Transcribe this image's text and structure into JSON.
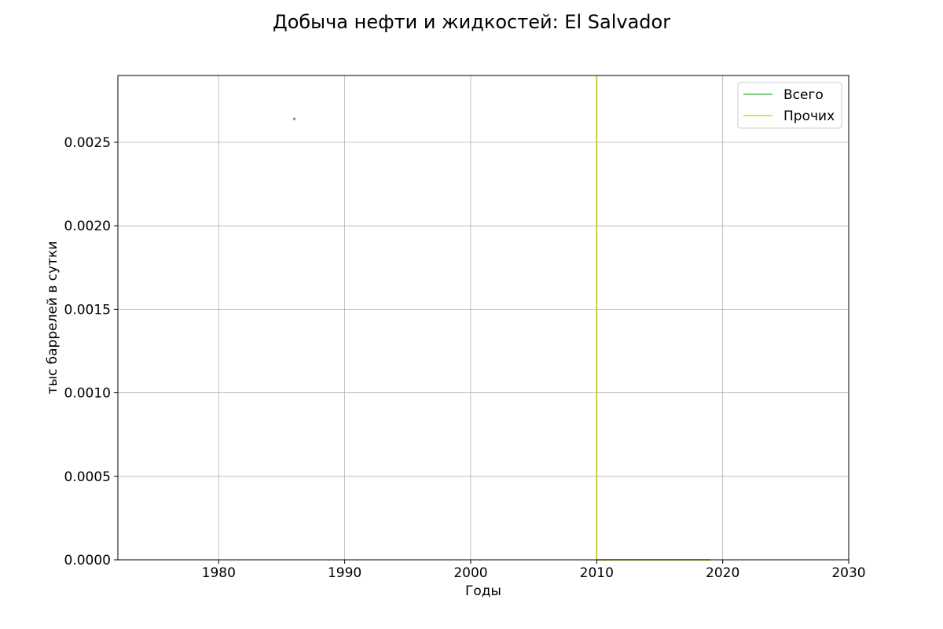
{
  "chart_data": {
    "type": "line",
    "title": "Добыча нефти и жидкостей: El Salvador",
    "xlabel": "Годы",
    "ylabel": "тыс баррелей в сутки",
    "xlim": [
      1972,
      2030
    ],
    "ylim": [
      0,
      0.0029
    ],
    "xticks": [
      1980,
      1990,
      2000,
      2010,
      2020,
      2030
    ],
    "yticks": [
      0.0,
      0.0005,
      0.001,
      0.0015,
      0.002,
      0.0025
    ],
    "ytick_labels": [
      "0.0000",
      "0.0005",
      "0.0010",
      "0.0015",
      "0.0020",
      "0.0025"
    ],
    "xtick_labels": [
      "1980",
      "1990",
      "2000",
      "2010",
      "2020",
      "2030"
    ],
    "grid": true,
    "legend_position": "top-right",
    "series": [
      {
        "name": "Всего",
        "color": "#2ca02c",
        "x": [
          1986
        ],
        "y": [
          0.00264
        ]
      },
      {
        "name": "Прочих",
        "color": "#c8c800",
        "x": [
          2010,
          2010,
          2011,
          2012,
          2013,
          2014,
          2015,
          2016,
          2017,
          2018,
          2019
        ],
        "y": [
          0.0029,
          0.0,
          0.0,
          0.0,
          0.0,
          0.0,
          0.0,
          0.0,
          0.0,
          0.0,
          0.0
        ]
      }
    ]
  }
}
